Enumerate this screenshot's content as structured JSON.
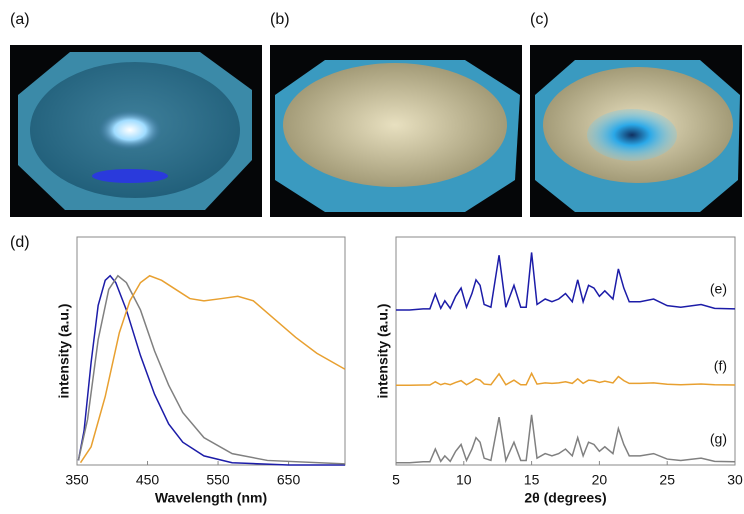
{
  "panels": {
    "a": "(a)",
    "b": "(b)",
    "c": "(c)",
    "d": "(d)"
  },
  "chart_data": [
    {
      "type": "line",
      "xlabel": "Wavelength (nm)",
      "ylabel": "intensity (a.u.)",
      "xlim": [
        350,
        730
      ],
      "ylim": [
        0,
        1
      ],
      "xticks": [
        350,
        450,
        550,
        650
      ],
      "series": [
        {
          "color": "#1c1ca8",
          "x": [
            352,
            360,
            370,
            380,
            390,
            397,
            405,
            420,
            440,
            460,
            480,
            500,
            530,
            570,
            650,
            730
          ],
          "values": [
            0.02,
            0.15,
            0.45,
            0.7,
            0.81,
            0.83,
            0.8,
            0.68,
            0.48,
            0.31,
            0.18,
            0.1,
            0.04,
            0.01,
            0,
            0
          ]
        },
        {
          "color": "#808080",
          "x": [
            352,
            365,
            380,
            395,
            408,
            420,
            440,
            460,
            480,
            500,
            530,
            570,
            620,
            730
          ],
          "values": [
            0.02,
            0.2,
            0.55,
            0.77,
            0.83,
            0.8,
            0.68,
            0.5,
            0.35,
            0.23,
            0.12,
            0.05,
            0.02,
            0.005
          ]
        },
        {
          "color": "#e8a030",
          "x": [
            355,
            370,
            390,
            410,
            425,
            440,
            453,
            470,
            490,
            510,
            530,
            555,
            578,
            600,
            630,
            660,
            690,
            730
          ],
          "values": [
            0.01,
            0.08,
            0.3,
            0.58,
            0.72,
            0.8,
            0.83,
            0.81,
            0.77,
            0.73,
            0.72,
            0.73,
            0.74,
            0.72,
            0.64,
            0.56,
            0.49,
            0.42
          ]
        }
      ]
    },
    {
      "type": "line",
      "xlabel": "2θ (degrees)",
      "ylabel": "intensity (a.u.)",
      "xlim": [
        5,
        30
      ],
      "ylim": [
        0,
        1
      ],
      "xticks": [
        5,
        10,
        15,
        20,
        25,
        30
      ],
      "x": [
        5,
        6,
        7,
        7.5,
        7.9,
        8.3,
        8.6,
        9,
        9.4,
        9.8,
        10.2,
        10.6,
        10.9,
        11.2,
        11.5,
        12,
        12.6,
        13.1,
        13.7,
        14.2,
        14.6,
        15,
        15.4,
        16,
        16.5,
        17,
        17.5,
        18,
        18.4,
        18.8,
        19.2,
        19.6,
        20,
        20.4,
        21,
        21.4,
        21.8,
        22.2,
        23,
        24,
        25,
        26,
        27.5,
        28.5,
        30
      ],
      "series": [
        {
          "name": "(e)",
          "color": "#1c1ca8",
          "values": [
            0.68,
            0.68,
            0.685,
            0.685,
            0.75,
            0.687,
            0.72,
            0.687,
            0.74,
            0.776,
            0.692,
            0.752,
            0.812,
            0.788,
            0.704,
            0.692,
            0.92,
            0.692,
            0.788,
            0.692,
            0.692,
            0.932,
            0.704,
            0.728,
            0.716,
            0.728,
            0.752,
            0.716,
            0.812,
            0.716,
            0.788,
            0.776,
            0.74,
            0.764,
            0.728,
            0.86,
            0.776,
            0.716,
            0.716,
            0.728,
            0.699,
            0.692,
            0.704,
            0.687,
            0.685
          ]
        },
        {
          "name": "(f)",
          "color": "#e8a030",
          "values": [
            0.35,
            0.35,
            0.351,
            0.351,
            0.365,
            0.352,
            0.358,
            0.352,
            0.362,
            0.37,
            0.352,
            0.365,
            0.378,
            0.372,
            0.355,
            0.352,
            0.4,
            0.352,
            0.372,
            0.352,
            0.352,
            0.402,
            0.355,
            0.36,
            0.358,
            0.36,
            0.365,
            0.358,
            0.378,
            0.358,
            0.372,
            0.37,
            0.362,
            0.368,
            0.36,
            0.388,
            0.37,
            0.358,
            0.358,
            0.36,
            0.354,
            0.352,
            0.355,
            0.352,
            0.351
          ]
        },
        {
          "name": "(g)",
          "color": "#808080",
          "values": [
            0.01,
            0.01,
            0.014,
            0.014,
            0.07,
            0.016,
            0.04,
            0.016,
            0.06,
            0.09,
            0.02,
            0.07,
            0.12,
            0.1,
            0.03,
            0.02,
            0.21,
            0.02,
            0.1,
            0.02,
            0.02,
            0.22,
            0.03,
            0.05,
            0.04,
            0.05,
            0.07,
            0.04,
            0.12,
            0.04,
            0.1,
            0.09,
            0.06,
            0.08,
            0.05,
            0.16,
            0.09,
            0.04,
            0.04,
            0.05,
            0.026,
            0.02,
            0.03,
            0.016,
            0.014
          ]
        }
      ]
    }
  ]
}
